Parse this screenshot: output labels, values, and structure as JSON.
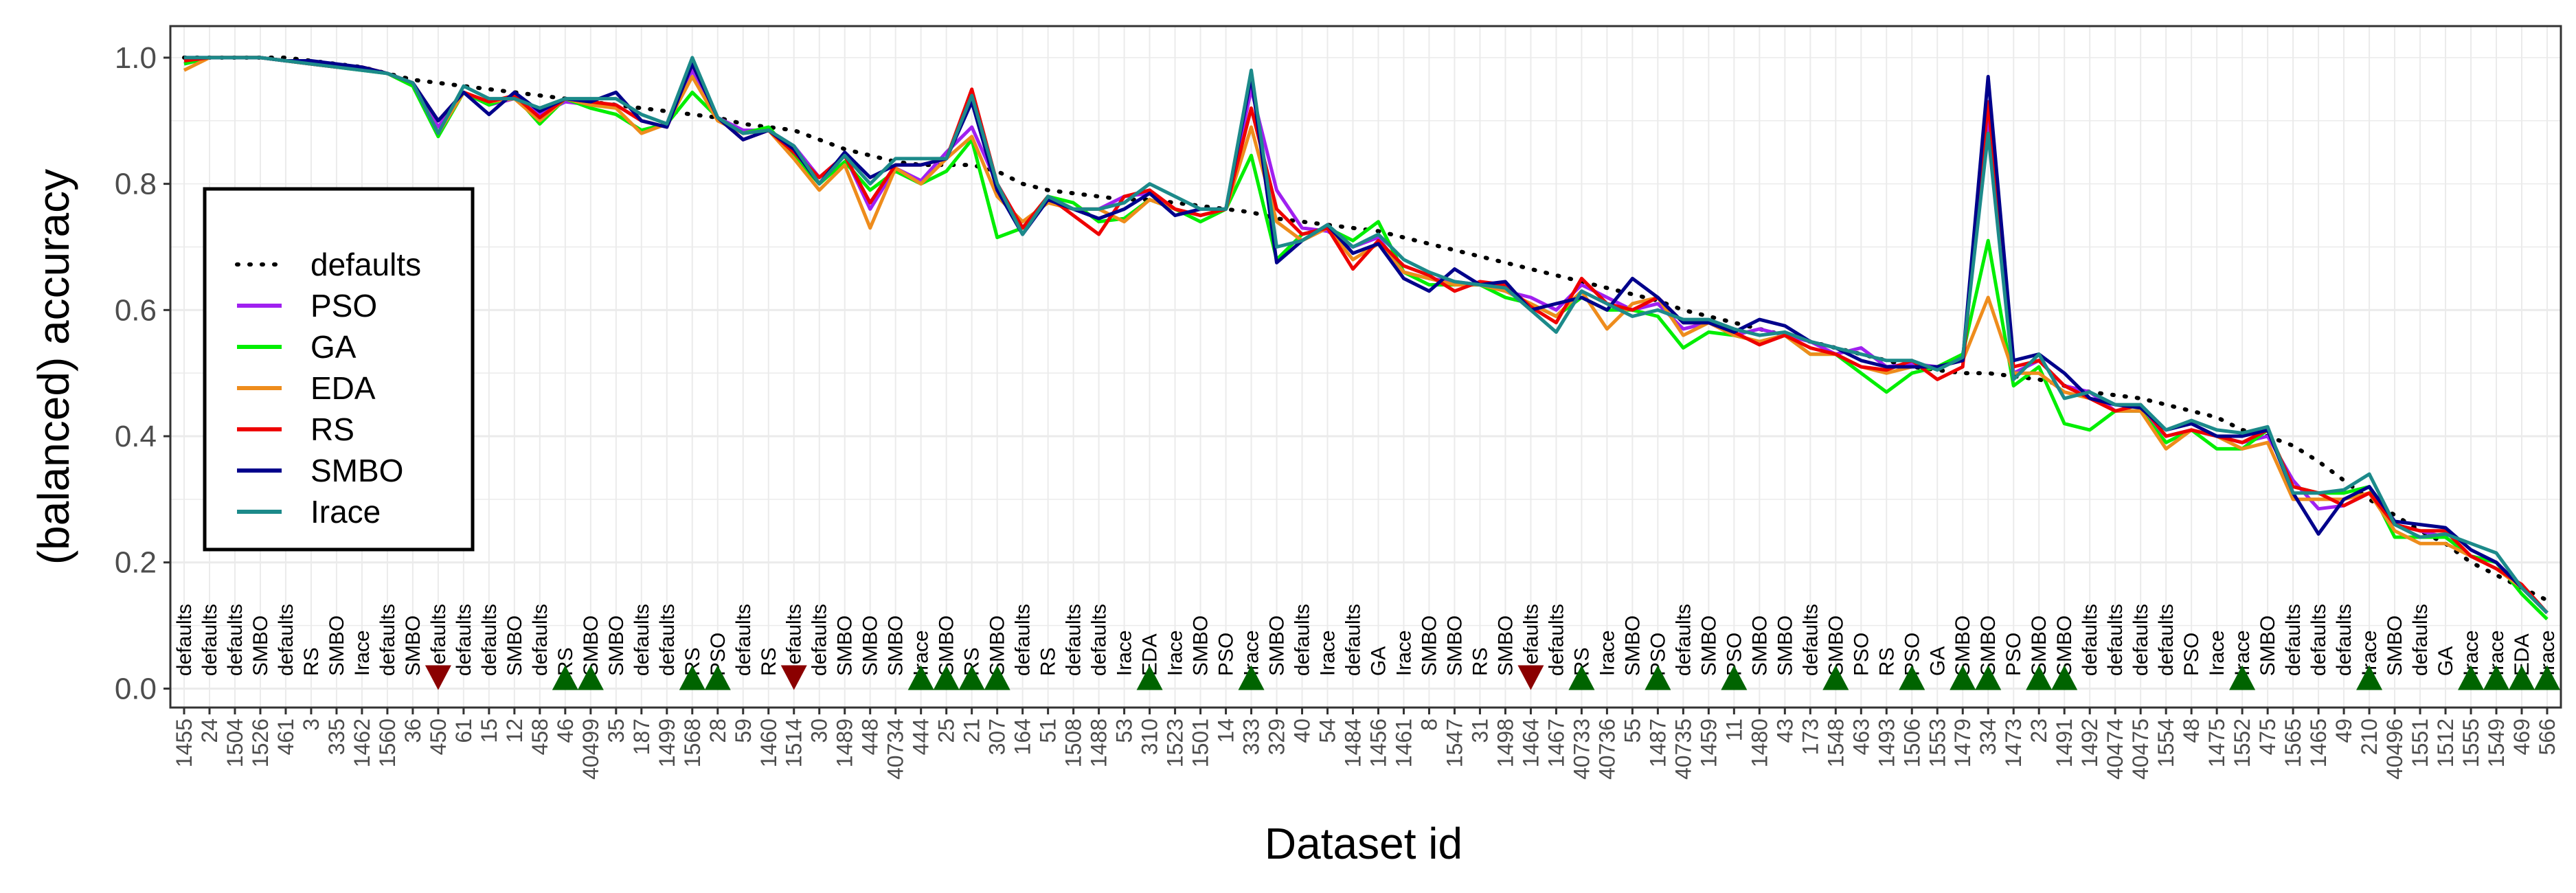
{
  "chart_data": {
    "type": "line",
    "xlabel": "Dataset id",
    "ylabel": "(balanced) accuracy",
    "ylim": [
      -0.03,
      1.05
    ],
    "yticks": [
      "0.0",
      "0.2",
      "0.4",
      "0.6",
      "0.8",
      "1.0"
    ],
    "grid": true,
    "legend_position": "left",
    "categories": [
      "1455",
      "24",
      "1504",
      "1526",
      "461",
      "3",
      "335",
      "1462",
      "1560",
      "36",
      "450",
      "61",
      "15",
      "12",
      "458",
      "46",
      "40499",
      "35",
      "187",
      "1499",
      "1568",
      "28",
      "59",
      "1460",
      "1514",
      "30",
      "1489",
      "448",
      "40734",
      "444",
      "25",
      "21",
      "307",
      "164",
      "51",
      "1508",
      "1488",
      "53",
      "310",
      "1523",
      "1501",
      "14",
      "333",
      "329",
      "40",
      "54",
      "1484",
      "1456",
      "1461",
      "8",
      "1547",
      "31",
      "1498",
      "1464",
      "1467",
      "40733",
      "40736",
      "55",
      "1487",
      "40735",
      "1459",
      "11",
      "1480",
      "43",
      "173",
      "1548",
      "463",
      "1493",
      "1506",
      "1553",
      "1479",
      "334",
      "1473",
      "23",
      "1491",
      "1492",
      "40474",
      "40475",
      "1554",
      "48",
      "1475",
      "1552",
      "475",
      "1565",
      "1465",
      "49",
      "210",
      "40496",
      "1551",
      "1512",
      "1555",
      "1549",
      "469",
      "566"
    ],
    "best": [
      "defaults",
      "defaults",
      "defaults",
      "SMBO",
      "defaults",
      "RS",
      "SMBO",
      "Irace",
      "defaults",
      "SMBO",
      "defaults",
      "defaults",
      "defaults",
      "SMBO",
      "defaults",
      "RS",
      "SMBO",
      "SMBO",
      "defaults",
      "defaults",
      "RS",
      "PSO",
      "defaults",
      "RS",
      "defaults",
      "defaults",
      "SMBO",
      "SMBO",
      "SMBO",
      "Irace",
      "SMBO",
      "RS",
      "SMBO",
      "defaults",
      "RS",
      "defaults",
      "defaults",
      "Irace",
      "EDA",
      "Irace",
      "SMBO",
      "PSO",
      "Irace",
      "SMBO",
      "defaults",
      "Irace",
      "defaults",
      "GA",
      "Irace",
      "SMBO",
      "SMBO",
      "RS",
      "SMBO",
      "defaults",
      "defaults",
      "RS",
      "Irace",
      "SMBO",
      "PSO",
      "defaults",
      "SMBO",
      "PSO",
      "SMBO",
      "SMBO",
      "defaults",
      "SMBO",
      "PSO",
      "RS",
      "PSO",
      "GA",
      "SMBO",
      "SMBO",
      "PSO",
      "SMBO",
      "SMBO",
      "defaults",
      "defaults",
      "defaults",
      "defaults",
      "PSO",
      "Irace",
      "Irace",
      "SMBO",
      "defaults",
      "defaults",
      "defaults",
      "Irace",
      "SMBO",
      "defaults",
      "GA",
      "Irace",
      "Irace",
      "EDA",
      "Irace"
    ],
    "markers": [
      "none",
      "none",
      "none",
      "none",
      "none",
      "none",
      "none",
      "none",
      "none",
      "none",
      "down",
      "none",
      "none",
      "none",
      "none",
      "up",
      "up",
      "none",
      "none",
      "none",
      "up",
      "up",
      "none",
      "none",
      "down",
      "none",
      "none",
      "none",
      "none",
      "up",
      "up",
      "up",
      "up",
      "none",
      "none",
      "none",
      "none",
      "none",
      "up",
      "none",
      "none",
      "none",
      "up",
      "none",
      "none",
      "none",
      "none",
      "none",
      "none",
      "none",
      "none",
      "none",
      "none",
      "down",
      "none",
      "up",
      "none",
      "none",
      "up",
      "none",
      "none",
      "up",
      "none",
      "none",
      "none",
      "up",
      "none",
      "none",
      "up",
      "none",
      "up",
      "up",
      "none",
      "up",
      "up",
      "none",
      "none",
      "none",
      "none",
      "none",
      "none",
      "up",
      "none",
      "none",
      "none",
      "none",
      "up",
      "none",
      "none",
      "none",
      "up",
      "up",
      "up",
      "up"
    ],
    "series": [
      {
        "name": "defaults",
        "color": "#000000",
        "style": "dotted",
        "values": [
          1.0,
          1.0,
          1.0,
          1.0,
          1.0,
          0.995,
          0.99,
          0.985,
          0.975,
          0.965,
          0.96,
          0.955,
          0.95,
          0.945,
          0.94,
          0.935,
          0.93,
          0.925,
          0.92,
          0.915,
          0.91,
          0.905,
          0.895,
          0.89,
          0.885,
          0.87,
          0.855,
          0.845,
          0.835,
          0.83,
          0.83,
          0.83,
          0.82,
          0.8,
          0.79,
          0.785,
          0.78,
          0.775,
          0.775,
          0.77,
          0.765,
          0.76,
          0.755,
          0.745,
          0.74,
          0.735,
          0.73,
          0.725,
          0.715,
          0.705,
          0.695,
          0.685,
          0.675,
          0.665,
          0.655,
          0.645,
          0.635,
          0.625,
          0.615,
          0.6,
          0.59,
          0.58,
          0.57,
          0.56,
          0.55,
          0.54,
          0.53,
          0.52,
          0.51,
          0.505,
          0.5,
          0.5,
          0.495,
          0.49,
          0.48,
          0.47,
          0.465,
          0.46,
          0.45,
          0.44,
          0.43,
          0.41,
          0.4,
          0.385,
          0.36,
          0.33,
          0.3,
          0.275,
          0.25,
          0.23,
          0.2,
          0.18,
          0.16,
          0.14
        ]
      },
      {
        "name": "PSO",
        "color": "#a020f0",
        "values": [
          0.99,
          1.0,
          1.0,
          1.0,
          0.995,
          0.99,
          0.985,
          0.985,
          0.975,
          0.96,
          0.89,
          0.945,
          0.925,
          0.935,
          0.91,
          0.93,
          0.925,
          0.925,
          0.9,
          0.89,
          0.98,
          0.905,
          0.885,
          0.885,
          0.86,
          0.81,
          0.845,
          0.76,
          0.825,
          0.805,
          0.85,
          0.89,
          0.8,
          0.73,
          0.78,
          0.76,
          0.76,
          0.78,
          0.785,
          0.76,
          0.75,
          0.76,
          0.95,
          0.79,
          0.73,
          0.725,
          0.7,
          0.715,
          0.66,
          0.65,
          0.645,
          0.64,
          0.63,
          0.62,
          0.6,
          0.64,
          0.62,
          0.6,
          0.61,
          0.57,
          0.58,
          0.56,
          0.57,
          0.56,
          0.55,
          0.53,
          0.54,
          0.51,
          0.515,
          0.51,
          0.52,
          0.91,
          0.5,
          0.52,
          0.48,
          0.47,
          0.44,
          0.44,
          0.4,
          0.41,
          0.4,
          0.39,
          0.4,
          0.33,
          0.285,
          0.29,
          0.31,
          0.26,
          0.25,
          0.24,
          0.21,
          0.2,
          0.16,
          0.12
        ]
      },
      {
        "name": "GA",
        "color": "#00ee00",
        "values": [
          0.99,
          1.0,
          1.0,
          1.0,
          0.995,
          0.99,
          0.985,
          0.98,
          0.975,
          0.955,
          0.875,
          0.945,
          0.925,
          0.94,
          0.895,
          0.935,
          0.92,
          0.91,
          0.885,
          0.895,
          0.945,
          0.905,
          0.88,
          0.89,
          0.845,
          0.8,
          0.835,
          0.79,
          0.82,
          0.8,
          0.82,
          0.87,
          0.715,
          0.73,
          0.78,
          0.77,
          0.74,
          0.745,
          0.775,
          0.76,
          0.74,
          0.76,
          0.845,
          0.68,
          0.72,
          0.73,
          0.71,
          0.74,
          0.66,
          0.64,
          0.64,
          0.64,
          0.62,
          0.61,
          0.59,
          0.62,
          0.6,
          0.6,
          0.59,
          0.54,
          0.565,
          0.56,
          0.55,
          0.56,
          0.53,
          0.53,
          0.5,
          0.47,
          0.5,
          0.51,
          0.53,
          0.71,
          0.48,
          0.51,
          0.42,
          0.41,
          0.44,
          0.44,
          0.39,
          0.41,
          0.38,
          0.38,
          0.41,
          0.32,
          0.31,
          0.31,
          0.32,
          0.24,
          0.24,
          0.24,
          0.21,
          0.2,
          0.15,
          0.11
        ]
      },
      {
        "name": "EDA",
        "color": "#ee8c1c",
        "values": [
          0.98,
          1.0,
          1.0,
          1.0,
          0.995,
          0.99,
          0.985,
          0.985,
          0.975,
          0.96,
          0.88,
          0.945,
          0.93,
          0.935,
          0.9,
          0.935,
          0.925,
          0.92,
          0.88,
          0.895,
          0.97,
          0.9,
          0.88,
          0.885,
          0.84,
          0.79,
          0.83,
          0.73,
          0.825,
          0.8,
          0.84,
          0.875,
          0.78,
          0.74,
          0.77,
          0.76,
          0.76,
          0.74,
          0.775,
          0.76,
          0.75,
          0.76,
          0.89,
          0.74,
          0.71,
          0.73,
          0.68,
          0.705,
          0.66,
          0.65,
          0.64,
          0.64,
          0.63,
          0.61,
          0.59,
          0.63,
          0.57,
          0.61,
          0.62,
          0.56,
          0.58,
          0.56,
          0.55,
          0.56,
          0.53,
          0.53,
          0.51,
          0.5,
          0.51,
          0.51,
          0.52,
          0.62,
          0.5,
          0.5,
          0.47,
          0.46,
          0.44,
          0.44,
          0.38,
          0.41,
          0.4,
          0.38,
          0.39,
          0.3,
          0.3,
          0.3,
          0.31,
          0.25,
          0.23,
          0.23,
          0.21,
          0.19,
          0.16,
          0.12
        ]
      },
      {
        "name": "RS",
        "color": "#ee0000",
        "values": [
          0.995,
          1.0,
          1.0,
          1.0,
          0.995,
          0.99,
          0.985,
          0.985,
          0.975,
          0.96,
          0.9,
          0.945,
          0.93,
          0.94,
          0.905,
          0.935,
          0.93,
          0.925,
          0.9,
          0.89,
          0.99,
          0.905,
          0.87,
          0.885,
          0.85,
          0.81,
          0.845,
          0.77,
          0.83,
          0.83,
          0.84,
          0.95,
          0.8,
          0.73,
          0.78,
          0.75,
          0.72,
          0.78,
          0.79,
          0.76,
          0.75,
          0.76,
          0.92,
          0.76,
          0.72,
          0.73,
          0.665,
          0.71,
          0.67,
          0.655,
          0.63,
          0.645,
          0.64,
          0.605,
          0.58,
          0.65,
          0.61,
          0.6,
          0.62,
          0.58,
          0.58,
          0.565,
          0.545,
          0.56,
          0.54,
          0.53,
          0.51,
          0.505,
          0.52,
          0.49,
          0.51,
          0.93,
          0.51,
          0.52,
          0.48,
          0.46,
          0.44,
          0.45,
          0.4,
          0.41,
          0.4,
          0.39,
          0.41,
          0.32,
          0.31,
          0.29,
          0.31,
          0.26,
          0.25,
          0.25,
          0.21,
          0.19,
          0.165,
          0.12
        ]
      },
      {
        "name": "SMBO",
        "color": "#00008b",
        "values": [
          1.0,
          1.0,
          1.0,
          1.0,
          0.995,
          0.995,
          0.99,
          0.985,
          0.975,
          0.96,
          0.9,
          0.945,
          0.91,
          0.945,
          0.915,
          0.935,
          0.93,
          0.945,
          0.9,
          0.89,
          0.99,
          0.905,
          0.87,
          0.885,
          0.855,
          0.8,
          0.85,
          0.81,
          0.83,
          0.83,
          0.84,
          0.93,
          0.79,
          0.72,
          0.775,
          0.76,
          0.745,
          0.76,
          0.785,
          0.75,
          0.76,
          0.76,
          0.97,
          0.675,
          0.71,
          0.735,
          0.69,
          0.705,
          0.65,
          0.63,
          0.665,
          0.64,
          0.645,
          0.6,
          0.61,
          0.62,
          0.6,
          0.65,
          0.62,
          0.58,
          0.58,
          0.565,
          0.585,
          0.575,
          0.55,
          0.54,
          0.52,
          0.51,
          0.51,
          0.51,
          0.52,
          0.97,
          0.52,
          0.53,
          0.5,
          0.46,
          0.45,
          0.445,
          0.41,
          0.42,
          0.4,
          0.4,
          0.41,
          0.31,
          0.245,
          0.3,
          0.32,
          0.265,
          0.26,
          0.255,
          0.22,
          0.2,
          0.16,
          0.12
        ]
      },
      {
        "name": "Irace",
        "color": "#1c8a8a",
        "values": [
          1.0,
          1.0,
          1.0,
          1.0,
          0.995,
          0.99,
          0.985,
          0.98,
          0.975,
          0.96,
          0.88,
          0.955,
          0.935,
          0.935,
          0.92,
          0.935,
          0.935,
          0.935,
          0.91,
          0.895,
          1.0,
          0.905,
          0.88,
          0.885,
          0.86,
          0.8,
          0.845,
          0.8,
          0.84,
          0.84,
          0.84,
          0.94,
          0.8,
          0.72,
          0.78,
          0.76,
          0.76,
          0.77,
          0.8,
          0.78,
          0.76,
          0.76,
          0.98,
          0.7,
          0.71,
          0.735,
          0.7,
          0.72,
          0.68,
          0.66,
          0.645,
          0.64,
          0.635,
          0.6,
          0.565,
          0.63,
          0.61,
          0.59,
          0.6,
          0.585,
          0.585,
          0.57,
          0.56,
          0.565,
          0.55,
          0.54,
          0.53,
          0.52,
          0.52,
          0.505,
          0.525,
          0.88,
          0.49,
          0.53,
          0.46,
          0.47,
          0.45,
          0.45,
          0.41,
          0.425,
          0.41,
          0.405,
          0.415,
          0.31,
          0.31,
          0.315,
          0.34,
          0.26,
          0.24,
          0.245,
          0.23,
          0.215,
          0.16,
          0.12
        ]
      }
    ]
  }
}
